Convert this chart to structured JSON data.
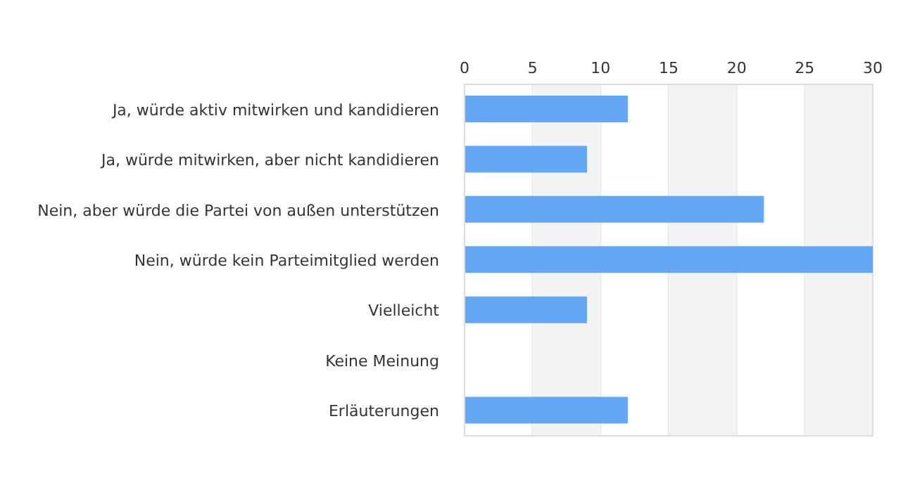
{
  "chart_data": {
    "type": "bar",
    "orientation": "horizontal",
    "categories": [
      "Ja, würde aktiv mitwirken und kandidieren",
      "Ja, würde mitwirken, aber nicht kandidieren",
      "Nein, aber würde die Partei von außen unterstützen",
      "Nein, würde kein Parteimitglied werden",
      "Vielleicht",
      "Keine Meinung",
      "Erläuterungen"
    ],
    "values": [
      12,
      9,
      22,
      30,
      9,
      0,
      12
    ],
    "color": "#64a8f5",
    "xlim": [
      0,
      30
    ],
    "xticks": [
      0,
      5,
      10,
      15,
      20,
      25,
      30
    ],
    "grid": "x",
    "bands": [
      {
        "axis": "x",
        "from": 5,
        "to": 10,
        "color": "#f3f3f3"
      },
      {
        "axis": "x",
        "from": 15,
        "to": 20,
        "color": "#f3f3f3"
      },
      {
        "axis": "x",
        "from": 25,
        "to": 30,
        "color": "#f3f3f3"
      }
    ]
  }
}
